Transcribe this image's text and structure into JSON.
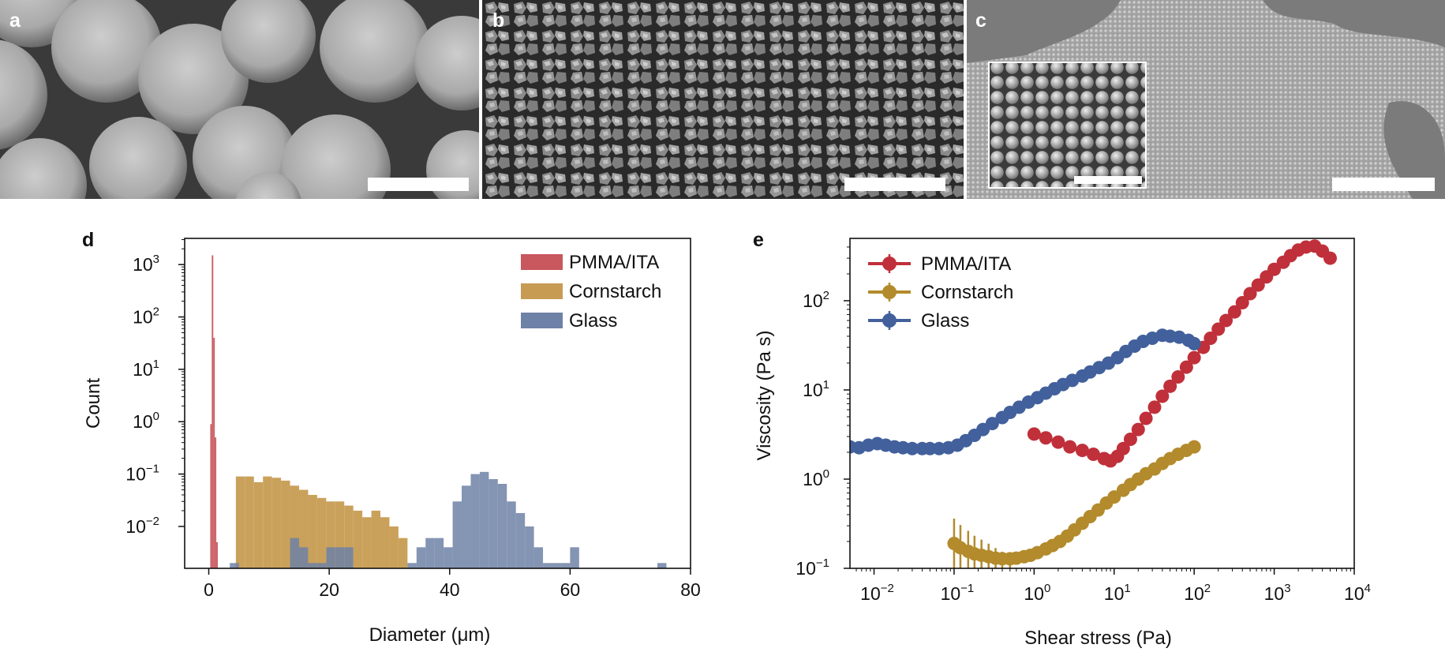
{
  "figure": {
    "panel_labels": {
      "a": "a",
      "b": "b",
      "c": "c",
      "d": "d",
      "e": "e"
    },
    "micrographs": [
      {
        "label": "a",
        "content": "large-smooth-spheres"
      },
      {
        "label": "b",
        "content": "faceted-polyhedral-grains"
      },
      {
        "label": "c",
        "content": "colloidal-film-with-inset"
      }
    ]
  },
  "chart_data": [
    {
      "panel": "d",
      "type": "histogram",
      "xlabel": "Diameter (μm)",
      "ylabel": "Count",
      "xlim": [
        -4,
        80
      ],
      "ylim_log10": [
        -2.8,
        3.5
      ],
      "x_ticks": [
        0,
        20,
        40,
        60,
        80
      ],
      "y_ticks_log10": [
        3,
        2,
        1,
        0,
        -1,
        -2
      ],
      "legend_location": "top-right",
      "series": [
        {
          "name": "PMMA/ITA",
          "color": "#c8575e",
          "bin_width": 0.25,
          "bins_x": [
            0.25,
            0.5,
            0.75,
            1.0,
            1.25
          ],
          "values": [
            0.9,
            1500,
            40,
            0.5,
            0.005
          ]
        },
        {
          "name": "Cornstarch",
          "color": "#c79c52",
          "bin_width": 1.5,
          "bins_x": [
            4.5,
            6,
            7.5,
            9,
            10.5,
            12,
            13.5,
            15,
            16.5,
            18,
            19.5,
            21,
            22.5,
            24,
            25.5,
            27,
            28.5,
            30,
            31.5
          ],
          "values": [
            0.09,
            0.09,
            0.07,
            0.09,
            0.085,
            0.075,
            0.06,
            0.05,
            0.04,
            0.035,
            0.03,
            0.03,
            0.025,
            0.02,
            0.015,
            0.02,
            0.015,
            0.01,
            0.006
          ]
        },
        {
          "name": "Glass",
          "color": "#6e81a6",
          "bin_width": 1.5,
          "bins_x": [
            3.5,
            13.5,
            15,
            16.5,
            18,
            19.5,
            21,
            22.5,
            33,
            34.5,
            36,
            37.5,
            39,
            40.5,
            42,
            43.5,
            45,
            46.5,
            48,
            49.5,
            51,
            52.5,
            54,
            55.5,
            57,
            58.5,
            60,
            74.5
          ],
          "values": [
            0.002,
            0.006,
            0.004,
            0.002,
            0.002,
            0.004,
            0.004,
            0.004,
            0.002,
            0.004,
            0.006,
            0.006,
            0.004,
            0.03,
            0.06,
            0.1,
            0.11,
            0.08,
            0.065,
            0.03,
            0.018,
            0.01,
            0.004,
            0.002,
            0.002,
            0.002,
            0.004,
            0.002
          ]
        }
      ]
    },
    {
      "panel": "e",
      "type": "line",
      "xscale": "log",
      "yscale": "log",
      "xlabel": "Shear stress (Pa)",
      "ylabel": "Viscosity (Pa s)",
      "xlim": [
        0.005,
        10000
      ],
      "ylim": [
        0.1,
        500
      ],
      "x_tick_labels": [
        {
          "base": "10",
          "exp": "−2",
          "log10": -2
        },
        {
          "base": "10",
          "exp": "−1",
          "log10": -1
        },
        {
          "base": "10",
          "exp": "0",
          "log10": 0
        },
        {
          "base": "10",
          "exp": "1",
          "log10": 1
        },
        {
          "base": "10",
          "exp": "2",
          "log10": 2
        },
        {
          "base": "10",
          "exp": "3",
          "log10": 3
        },
        {
          "base": "10",
          "exp": "4",
          "log10": 4
        }
      ],
      "y_tick_labels": [
        {
          "base": "10",
          "exp": "−1",
          "log10": -1
        },
        {
          "base": "10",
          "exp": "0",
          "log10": 0
        },
        {
          "base": "10",
          "exp": "1",
          "log10": 1
        },
        {
          "base": "10",
          "exp": "2",
          "log10": 2
        }
      ],
      "legend_location": "top-left",
      "series": [
        {
          "name": "PMMA/ITA",
          "color": "#c0303a",
          "x": [
            1,
            1.4,
            2,
            2.8,
            4,
            5.5,
            7.5,
            9,
            11,
            13,
            16,
            20,
            25,
            32,
            40,
            50,
            63,
            80,
            100,
            130,
            160,
            200,
            250,
            320,
            400,
            500,
            630,
            800,
            1000,
            1300,
            1600,
            2000,
            2500,
            3200,
            4000,
            5000
          ],
          "y": [
            3.2,
            2.9,
            2.6,
            2.3,
            2.1,
            1.9,
            1.7,
            1.6,
            1.8,
            2.2,
            2.8,
            3.6,
            4.8,
            6.4,
            8.5,
            11,
            14,
            18,
            23,
            30,
            38,
            48,
            60,
            75,
            95,
            120,
            150,
            185,
            225,
            270,
            320,
            370,
            400,
            410,
            360,
            300
          ]
        },
        {
          "name": "Cornstarch",
          "color": "#b38b2c",
          "x": [
            0.1,
            0.12,
            0.15,
            0.18,
            0.22,
            0.27,
            0.33,
            0.4,
            0.5,
            0.6,
            0.75,
            0.9,
            1.1,
            1.4,
            1.7,
            2.1,
            2.6,
            3.2,
            4,
            5,
            6.3,
            8,
            10,
            13,
            16,
            20,
            25,
            32,
            40,
            50,
            63,
            80,
            100
          ],
          "y": [
            0.19,
            0.17,
            0.155,
            0.145,
            0.14,
            0.135,
            0.13,
            0.128,
            0.128,
            0.13,
            0.135,
            0.14,
            0.15,
            0.165,
            0.18,
            0.2,
            0.23,
            0.27,
            0.32,
            0.38,
            0.45,
            0.54,
            0.63,
            0.75,
            0.87,
            1.0,
            1.15,
            1.3,
            1.5,
            1.7,
            1.9,
            2.1,
            2.3
          ]
        },
        {
          "name": "Glass",
          "color": "#42609c",
          "x": [
            0.005,
            0.0065,
            0.0085,
            0.011,
            0.014,
            0.018,
            0.023,
            0.03,
            0.04,
            0.05,
            0.065,
            0.085,
            0.11,
            0.14,
            0.18,
            0.23,
            0.3,
            0.4,
            0.5,
            0.65,
            0.85,
            1.1,
            1.4,
            1.8,
            2.3,
            3,
            4,
            5,
            6.5,
            8.5,
            11,
            14,
            18,
            23,
            30,
            40,
            50,
            65,
            85,
            100
          ],
          "y": [
            2.3,
            2.25,
            2.4,
            2.5,
            2.4,
            2.3,
            2.25,
            2.2,
            2.2,
            2.2,
            2.2,
            2.25,
            2.4,
            2.7,
            3.1,
            3.6,
            4.2,
            4.9,
            5.6,
            6.4,
            7.3,
            8.2,
            9.2,
            10.3,
            11.5,
            12.8,
            14.3,
            15.9,
            17.8,
            20,
            23,
            27,
            31,
            35,
            38,
            41,
            40,
            39,
            36,
            33
          ]
        }
      ]
    }
  ]
}
